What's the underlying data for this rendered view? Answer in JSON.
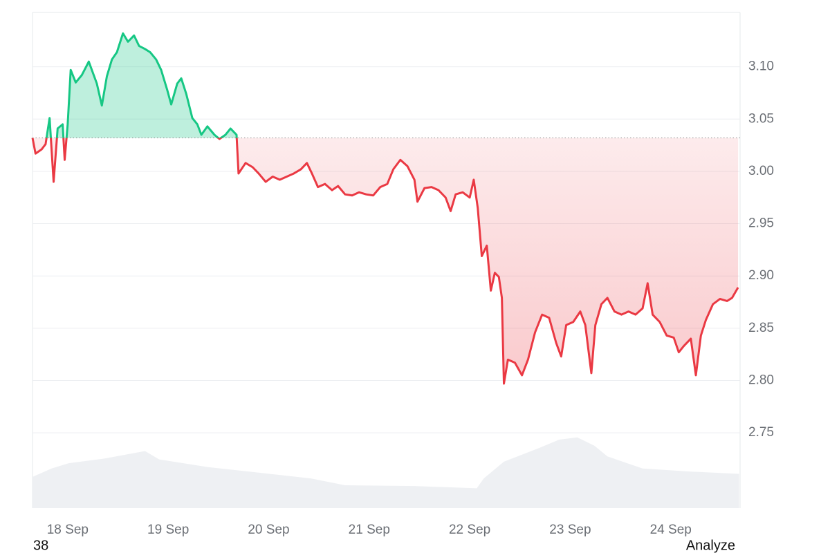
{
  "chart_data": {
    "type": "line",
    "x": [
      17.65,
      17.68,
      17.74,
      17.78,
      17.82,
      17.86,
      17.9,
      17.95,
      17.97,
      18.0,
      18.03,
      18.08,
      18.14,
      18.21,
      18.29,
      18.34,
      18.39,
      18.44,
      18.49,
      18.55,
      18.6,
      18.66,
      18.71,
      18.77,
      18.82,
      18.88,
      18.93,
      18.99,
      19.03,
      19.09,
      19.13,
      19.18,
      19.24,
      19.29,
      19.33,
      19.39,
      19.46,
      19.51,
      19.57,
      19.62,
      19.68,
      19.7,
      19.77,
      19.84,
      19.9,
      19.97,
      20.04,
      20.11,
      20.18,
      20.25,
      20.32,
      20.38,
      20.43,
      20.49,
      20.56,
      20.63,
      20.69,
      20.76,
      20.83,
      20.9,
      20.97,
      21.04,
      21.11,
      21.18,
      21.24,
      21.31,
      21.38,
      21.45,
      21.48,
      21.55,
      21.62,
      21.69,
      21.76,
      21.81,
      21.86,
      21.93,
      22.0,
      22.04,
      22.08,
      22.12,
      22.17,
      22.21,
      22.25,
      22.29,
      22.32,
      22.34,
      22.38,
      22.45,
      22.52,
      22.58,
      22.65,
      22.72,
      22.79,
      22.86,
      22.91,
      22.96,
      23.03,
      23.1,
      23.15,
      23.21,
      23.25,
      23.31,
      23.37,
      23.44,
      23.51,
      23.58,
      23.65,
      23.72,
      23.77,
      23.82,
      23.89,
      23.96,
      24.03,
      24.08,
      24.13,
      24.2,
      24.25,
      24.3,
      24.35,
      24.42,
      24.49,
      24.56,
      24.61,
      24.67
    ],
    "values": [
      3.032,
      3.017,
      3.021,
      3.026,
      3.051,
      2.99,
      3.041,
      3.045,
      3.011,
      3.045,
      3.097,
      3.085,
      3.092,
      3.105,
      3.084,
      3.063,
      3.091,
      3.107,
      3.114,
      3.132,
      3.124,
      3.13,
      3.12,
      3.117,
      3.114,
      3.107,
      3.097,
      3.078,
      3.064,
      3.084,
      3.089,
      3.074,
      3.051,
      3.045,
      3.035,
      3.043,
      3.035,
      3.031,
      3.035,
      3.041,
      3.035,
      2.998,
      3.008,
      3.004,
      2.998,
      2.99,
      2.995,
      2.992,
      2.995,
      2.998,
      3.002,
      3.008,
      2.998,
      2.985,
      2.988,
      2.982,
      2.986,
      2.978,
      2.977,
      2.98,
      2.978,
      2.977,
      2.985,
      2.988,
      3.002,
      3.011,
      3.005,
      2.992,
      2.971,
      2.984,
      2.985,
      2.982,
      2.975,
      2.962,
      2.978,
      2.98,
      2.975,
      2.992,
      2.965,
      2.919,
      2.929,
      2.886,
      2.903,
      2.899,
      2.879,
      2.797,
      2.82,
      2.817,
      2.805,
      2.82,
      2.846,
      2.863,
      2.86,
      2.836,
      2.823,
      2.853,
      2.856,
      2.866,
      2.853,
      2.807,
      2.853,
      2.873,
      2.879,
      2.866,
      2.863,
      2.866,
      2.863,
      2.869,
      2.893,
      2.863,
      2.856,
      2.843,
      2.841,
      2.827,
      2.833,
      2.84,
      2.805,
      2.843,
      2.858,
      2.873,
      2.878,
      2.876,
      2.879,
      2.889
    ],
    "baseline": 3.032,
    "up_color": "#16c784",
    "down_color": "#ea3943",
    "xlim": [
      17.65,
      24.69
    ],
    "xticks": [
      {
        "value": 18,
        "label": "18 Sep"
      },
      {
        "value": 19,
        "label": "19 Sep"
      },
      {
        "value": 20,
        "label": "20 Sep"
      },
      {
        "value": 21,
        "label": "21 Sep"
      },
      {
        "value": 22,
        "label": "22 Sep"
      },
      {
        "value": 23,
        "label": "23 Sep"
      },
      {
        "value": 24,
        "label": "24 Sep"
      }
    ],
    "ylim": [
      2.678,
      3.152
    ],
    "yticks": [
      2.75,
      {
        "value": 2.8,
        "label": "2.80"
      },
      2.85,
      {
        "value": 2.9,
        "label": "2.90"
      },
      2.95,
      {
        "value": 3.0,
        "label": "3.00"
      },
      3.05,
      {
        "value": 3.1,
        "label": "3.10"
      }
    ],
    "grid": true,
    "volume": {
      "color": "#eef0f3",
      "x": [
        17.65,
        17.84,
        18.01,
        18.36,
        18.77,
        18.91,
        19.39,
        19.94,
        20.42,
        20.76,
        21.45,
        22.07,
        22.14,
        22.34,
        22.69,
        22.89,
        23.07,
        23.24,
        23.37,
        23.72,
        24.2,
        24.68
      ],
      "values": [
        41,
        52,
        59,
        65,
        75,
        64,
        54,
        46,
        39,
        30,
        29,
        26,
        39,
        61,
        79,
        90,
        93,
        82,
        68,
        52,
        48,
        45
      ],
      "vlim": [
        0,
        100
      ]
    }
  },
  "footer": {
    "left": "38",
    "right": "Analyze"
  }
}
